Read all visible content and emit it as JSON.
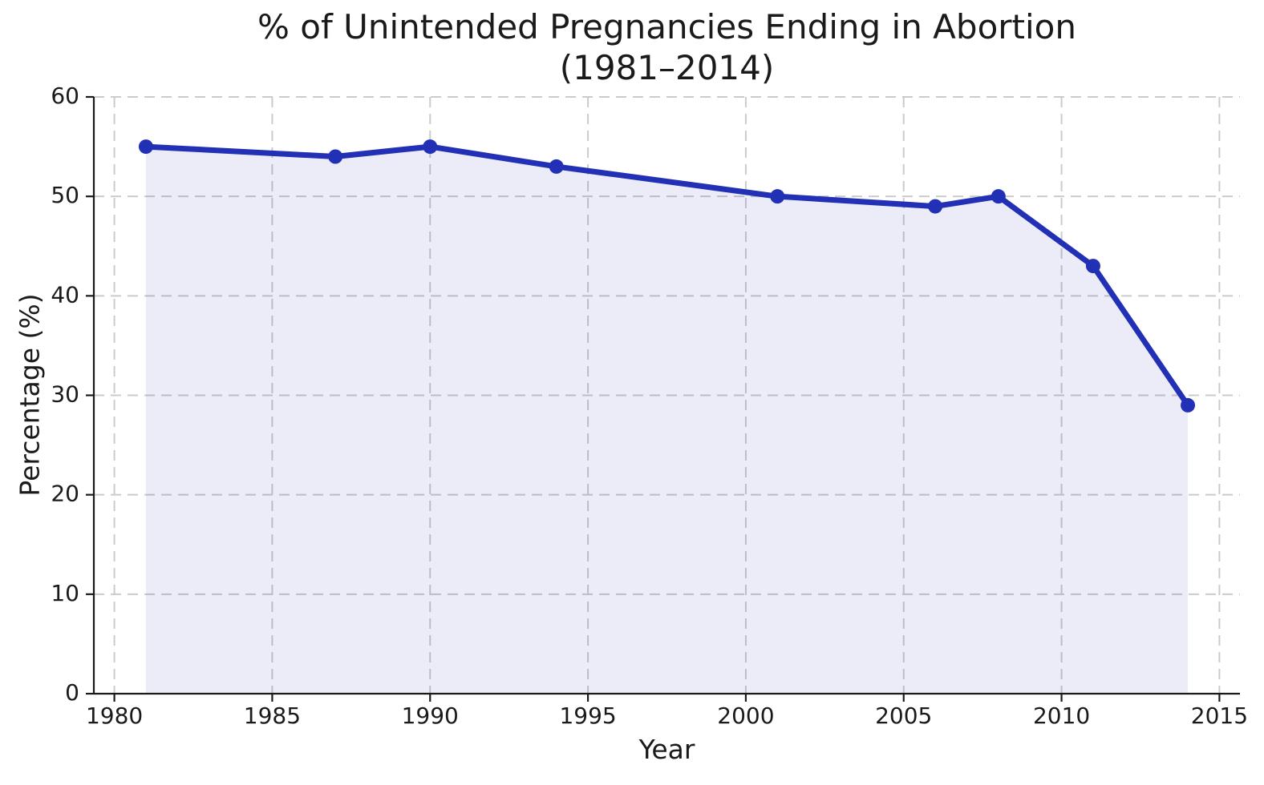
{
  "figure": {
    "title_line1": "% of Unintended Pregnancies Ending in Abortion",
    "title_line2": "(1981–2014)",
    "xlabel": "Year",
    "ylabel": "Percentage (%)"
  },
  "chart_data": {
    "type": "line",
    "title": "% of Unintended Pregnancies Ending in Abortion (1981–2014)",
    "xlabel": "Year",
    "ylabel": "Percentage (%)",
    "series": [
      {
        "name": "% of unintended pregnancies ending in abortion",
        "x": [
          1981,
          1987,
          1990,
          1994,
          2001,
          2006,
          2008,
          2011,
          2014
        ],
        "values": [
          55,
          54,
          55,
          53,
          50,
          49,
          50,
          43,
          29
        ]
      }
    ],
    "xlim": [
      1979.35,
      2015.65
    ],
    "ylim": [
      0,
      60
    ],
    "xticks": [
      1980,
      1985,
      1990,
      1995,
      2000,
      2005,
      2010,
      2015
    ],
    "yticks": [
      0,
      10,
      20,
      30,
      40,
      50,
      60
    ],
    "grid": true,
    "grid_style": "dashed",
    "legend_position": "none",
    "area_fill_to_zero": true,
    "marker": "circle",
    "colors": {
      "line": "#2230b5",
      "fill": "#2230b5",
      "grid": "#cbcbcb",
      "axis": "#1a1a1a",
      "background": "#ffffff"
    },
    "fill_opacity": 0.09
  }
}
